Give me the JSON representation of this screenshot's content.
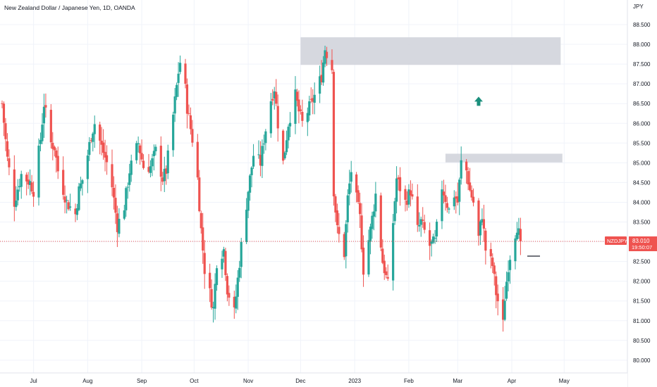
{
  "header": {
    "symbol_label": "New Zealand Dollar / Japanese Yen, 1D, OANDA"
  },
  "price_axis": {
    "currency": "JPY",
    "ticks": [
      "88.500",
      "88.000",
      "87.500",
      "87.000",
      "86.500",
      "86.000",
      "85.500",
      "85.000",
      "84.500",
      "84.000",
      "83.500",
      "83.000",
      "82.500",
      "82.000",
      "81.500",
      "81.000",
      "80.500",
      "80.000"
    ]
  },
  "time_axis": {
    "labels": [
      "Jul",
      "Aug",
      "Sep",
      "Oct",
      "Nov",
      "Dec",
      "2023",
      "Feb",
      "Mar",
      "Apr",
      "May"
    ]
  },
  "last_price": {
    "ticker": "NZDJPY",
    "price": "83.010",
    "countdown": "19:50:07"
  },
  "colors": {
    "up": "#26a69a",
    "down": "#ef5350",
    "zone": "#d1d4dc",
    "arrow": "#1b8f7c",
    "axis_text": "#131722",
    "grid": "#f0f3fa",
    "price_line": "#ef5350"
  },
  "icons": {
    "marker": "arrow-up-icon"
  },
  "chart_data": {
    "type": "candlestick",
    "ylim": [
      79.85,
      88.8
    ],
    "xlabel": "",
    "ylabel": "",
    "grid": true,
    "zones": [
      {
        "x_from": "2022-12-01",
        "x_to": "2023-04-29",
        "y_from": 87.48,
        "y_to": 88.18
      },
      {
        "x_from": "2023-02-22",
        "x_to": "2023-04-30",
        "y_from": 85.01,
        "y_to": 85.23
      }
    ],
    "markers": [
      {
        "type": "arrow-up",
        "x": "2023-03-13",
        "y": 86.55
      }
    ],
    "waypoints": [
      [
        "2022-06-13",
        86.5
      ],
      [
        "2022-06-16",
        85.1
      ],
      [
        "2022-06-20",
        84.0
      ],
      [
        "2022-06-24",
        84.7
      ],
      [
        "2022-06-29",
        84.5
      ],
      [
        "2022-07-01",
        84.3
      ],
      [
        "2022-07-05",
        85.6
      ],
      [
        "2022-07-07",
        86.5
      ],
      [
        "2022-07-11",
        85.5
      ],
      [
        "2022-07-13",
        85.4
      ],
      [
        "2022-07-15",
        84.8
      ],
      [
        "2022-07-20",
        84.0
      ],
      [
        "2022-07-25",
        83.7
      ],
      [
        "2022-07-27",
        84.3
      ],
      [
        "2022-07-30",
        84.7
      ],
      [
        "2022-08-03",
        85.7
      ],
      [
        "2022-08-05",
        86.0
      ],
      [
        "2022-08-09",
        85.4
      ],
      [
        "2022-08-12",
        85.0
      ],
      [
        "2022-08-15",
        84.4
      ],
      [
        "2022-08-18",
        83.4
      ],
      [
        "2022-08-22",
        83.9
      ],
      [
        "2022-08-25",
        84.8
      ],
      [
        "2022-08-30",
        85.5
      ],
      [
        "2022-09-02",
        84.9
      ],
      [
        "2022-09-06",
        84.9
      ],
      [
        "2022-09-09",
        85.3
      ],
      [
        "2022-09-13",
        84.6
      ],
      [
        "2022-09-15",
        84.8
      ],
      [
        "2022-09-19",
        86.2
      ],
      [
        "2022-09-22",
        87.3
      ],
      [
        "2022-09-24",
        87.8
      ],
      [
        "2022-09-27",
        86.4
      ],
      [
        "2022-09-30",
        85.6
      ],
      [
        "2022-10-03",
        84.6
      ],
      [
        "2022-10-05",
        83.3
      ],
      [
        "2022-10-07",
        82.3
      ],
      [
        "2022-10-12",
        81.3
      ],
      [
        "2022-10-14",
        82.5
      ],
      [
        "2022-10-18",
        82.8
      ],
      [
        "2022-10-20",
        81.8
      ],
      [
        "2022-10-24",
        81.2
      ],
      [
        "2022-10-28",
        82.9
      ],
      [
        "2022-11-01",
        84.3
      ],
      [
        "2022-11-04",
        85.2
      ],
      [
        "2022-11-08",
        85.0
      ],
      [
        "2022-11-10",
        85.6
      ],
      [
        "2022-11-14",
        86.6
      ],
      [
        "2022-11-16",
        86.9
      ],
      [
        "2022-11-18",
        86.0
      ],
      [
        "2022-11-21",
        85.0
      ],
      [
        "2022-11-24",
        86.0
      ],
      [
        "2022-11-28",
        86.7
      ],
      [
        "2022-11-30",
        86.3
      ],
      [
        "2022-12-02",
        86.0
      ],
      [
        "2022-12-05",
        86.3
      ],
      [
        "2022-12-09",
        86.7
      ],
      [
        "2022-12-13",
        87.2
      ],
      [
        "2022-12-15",
        87.9
      ],
      [
        "2022-12-19",
        87.4
      ],
      [
        "2022-12-20",
        84.3
      ],
      [
        "2022-12-22",
        83.3
      ],
      [
        "2022-12-26",
        82.7
      ],
      [
        "2022-12-28",
        84.1
      ],
      [
        "2022-12-30",
        84.8
      ],
      [
        "2023-01-04",
        83.6
      ],
      [
        "2023-01-06",
        82.3
      ],
      [
        "2023-01-10",
        83.3
      ],
      [
        "2023-01-13",
        84.2
      ],
      [
        "2023-01-17",
        82.5
      ],
      [
        "2023-01-20",
        81.9
      ],
      [
        "2023-01-23",
        83.5
      ],
      [
        "2023-01-25",
        84.6
      ],
      [
        "2023-01-30",
        84.0
      ],
      [
        "2023-02-02",
        84.3
      ],
      [
        "2023-02-06",
        83.3
      ],
      [
        "2023-02-08",
        83.5
      ],
      [
        "2023-02-13",
        82.9
      ],
      [
        "2023-02-16",
        83.0
      ],
      [
        "2023-02-20",
        84.4
      ],
      [
        "2023-02-22",
        84.1
      ],
      [
        "2023-02-24",
        83.8
      ],
      [
        "2023-02-27",
        84.2
      ],
      [
        "2023-03-01",
        84.0
      ],
      [
        "2023-03-03",
        85.0
      ],
      [
        "2023-03-06",
        84.8
      ],
      [
        "2023-03-08",
        84.3
      ],
      [
        "2023-03-10",
        84.0
      ],
      [
        "2023-03-13",
        83.1
      ],
      [
        "2023-03-15",
        83.7
      ],
      [
        "2023-03-17",
        82.8
      ],
      [
        "2023-03-21",
        82.4
      ],
      [
        "2023-03-23",
        81.7
      ],
      [
        "2023-03-24",
        81.5
      ],
      [
        "2023-03-27",
        80.9
      ],
      [
        "2023-03-28",
        81.6
      ],
      [
        "2023-03-30",
        82.4
      ],
      [
        "2023-04-01",
        82.9
      ],
      [
        "2023-04-04",
        83.4
      ],
      [
        "2023-04-06",
        83.01
      ]
    ]
  }
}
